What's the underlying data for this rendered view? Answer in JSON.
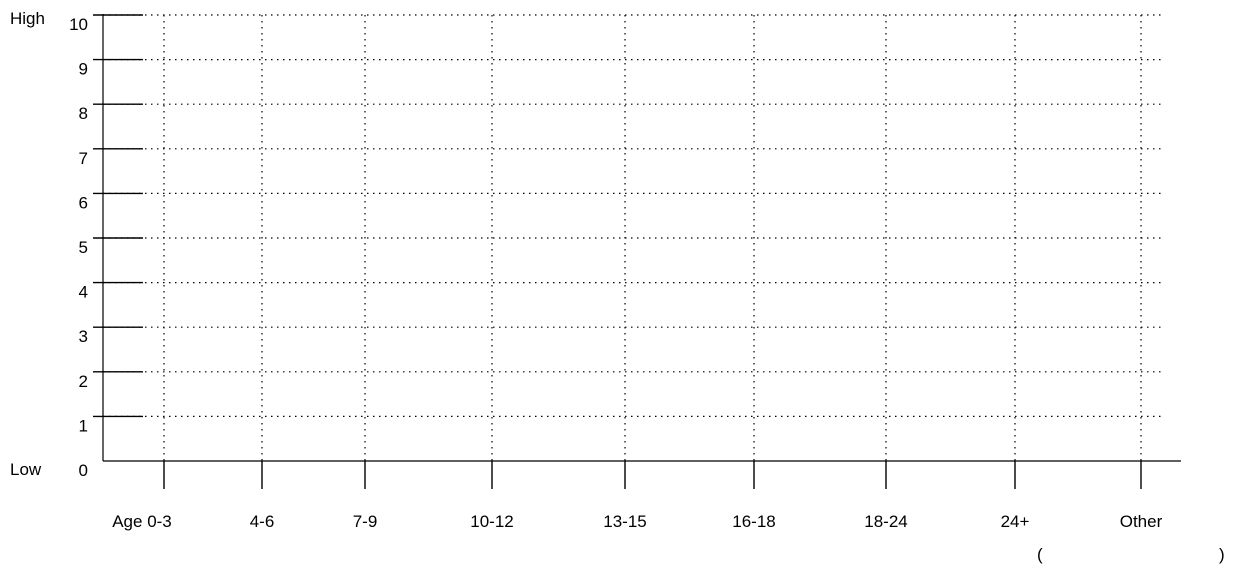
{
  "chart_data": {
    "type": "line",
    "title": "",
    "xlabel": "",
    "ylabel": "",
    "y_high_label": "High",
    "y_low_label": "Low",
    "ylim": [
      0,
      10
    ],
    "yticks": [
      "0",
      "1",
      "2",
      "3",
      "4",
      "5",
      "6",
      "7",
      "8",
      "9",
      "10"
    ],
    "categories": [
      "Age 0-3",
      "4-6",
      "7-9",
      "10-12",
      "13-15",
      "16-18",
      "18-24",
      "24+",
      "Other"
    ],
    "grid": true,
    "grid_style": "dotted",
    "series": []
  },
  "other_note": {
    "open": "(",
    "close": ")"
  }
}
